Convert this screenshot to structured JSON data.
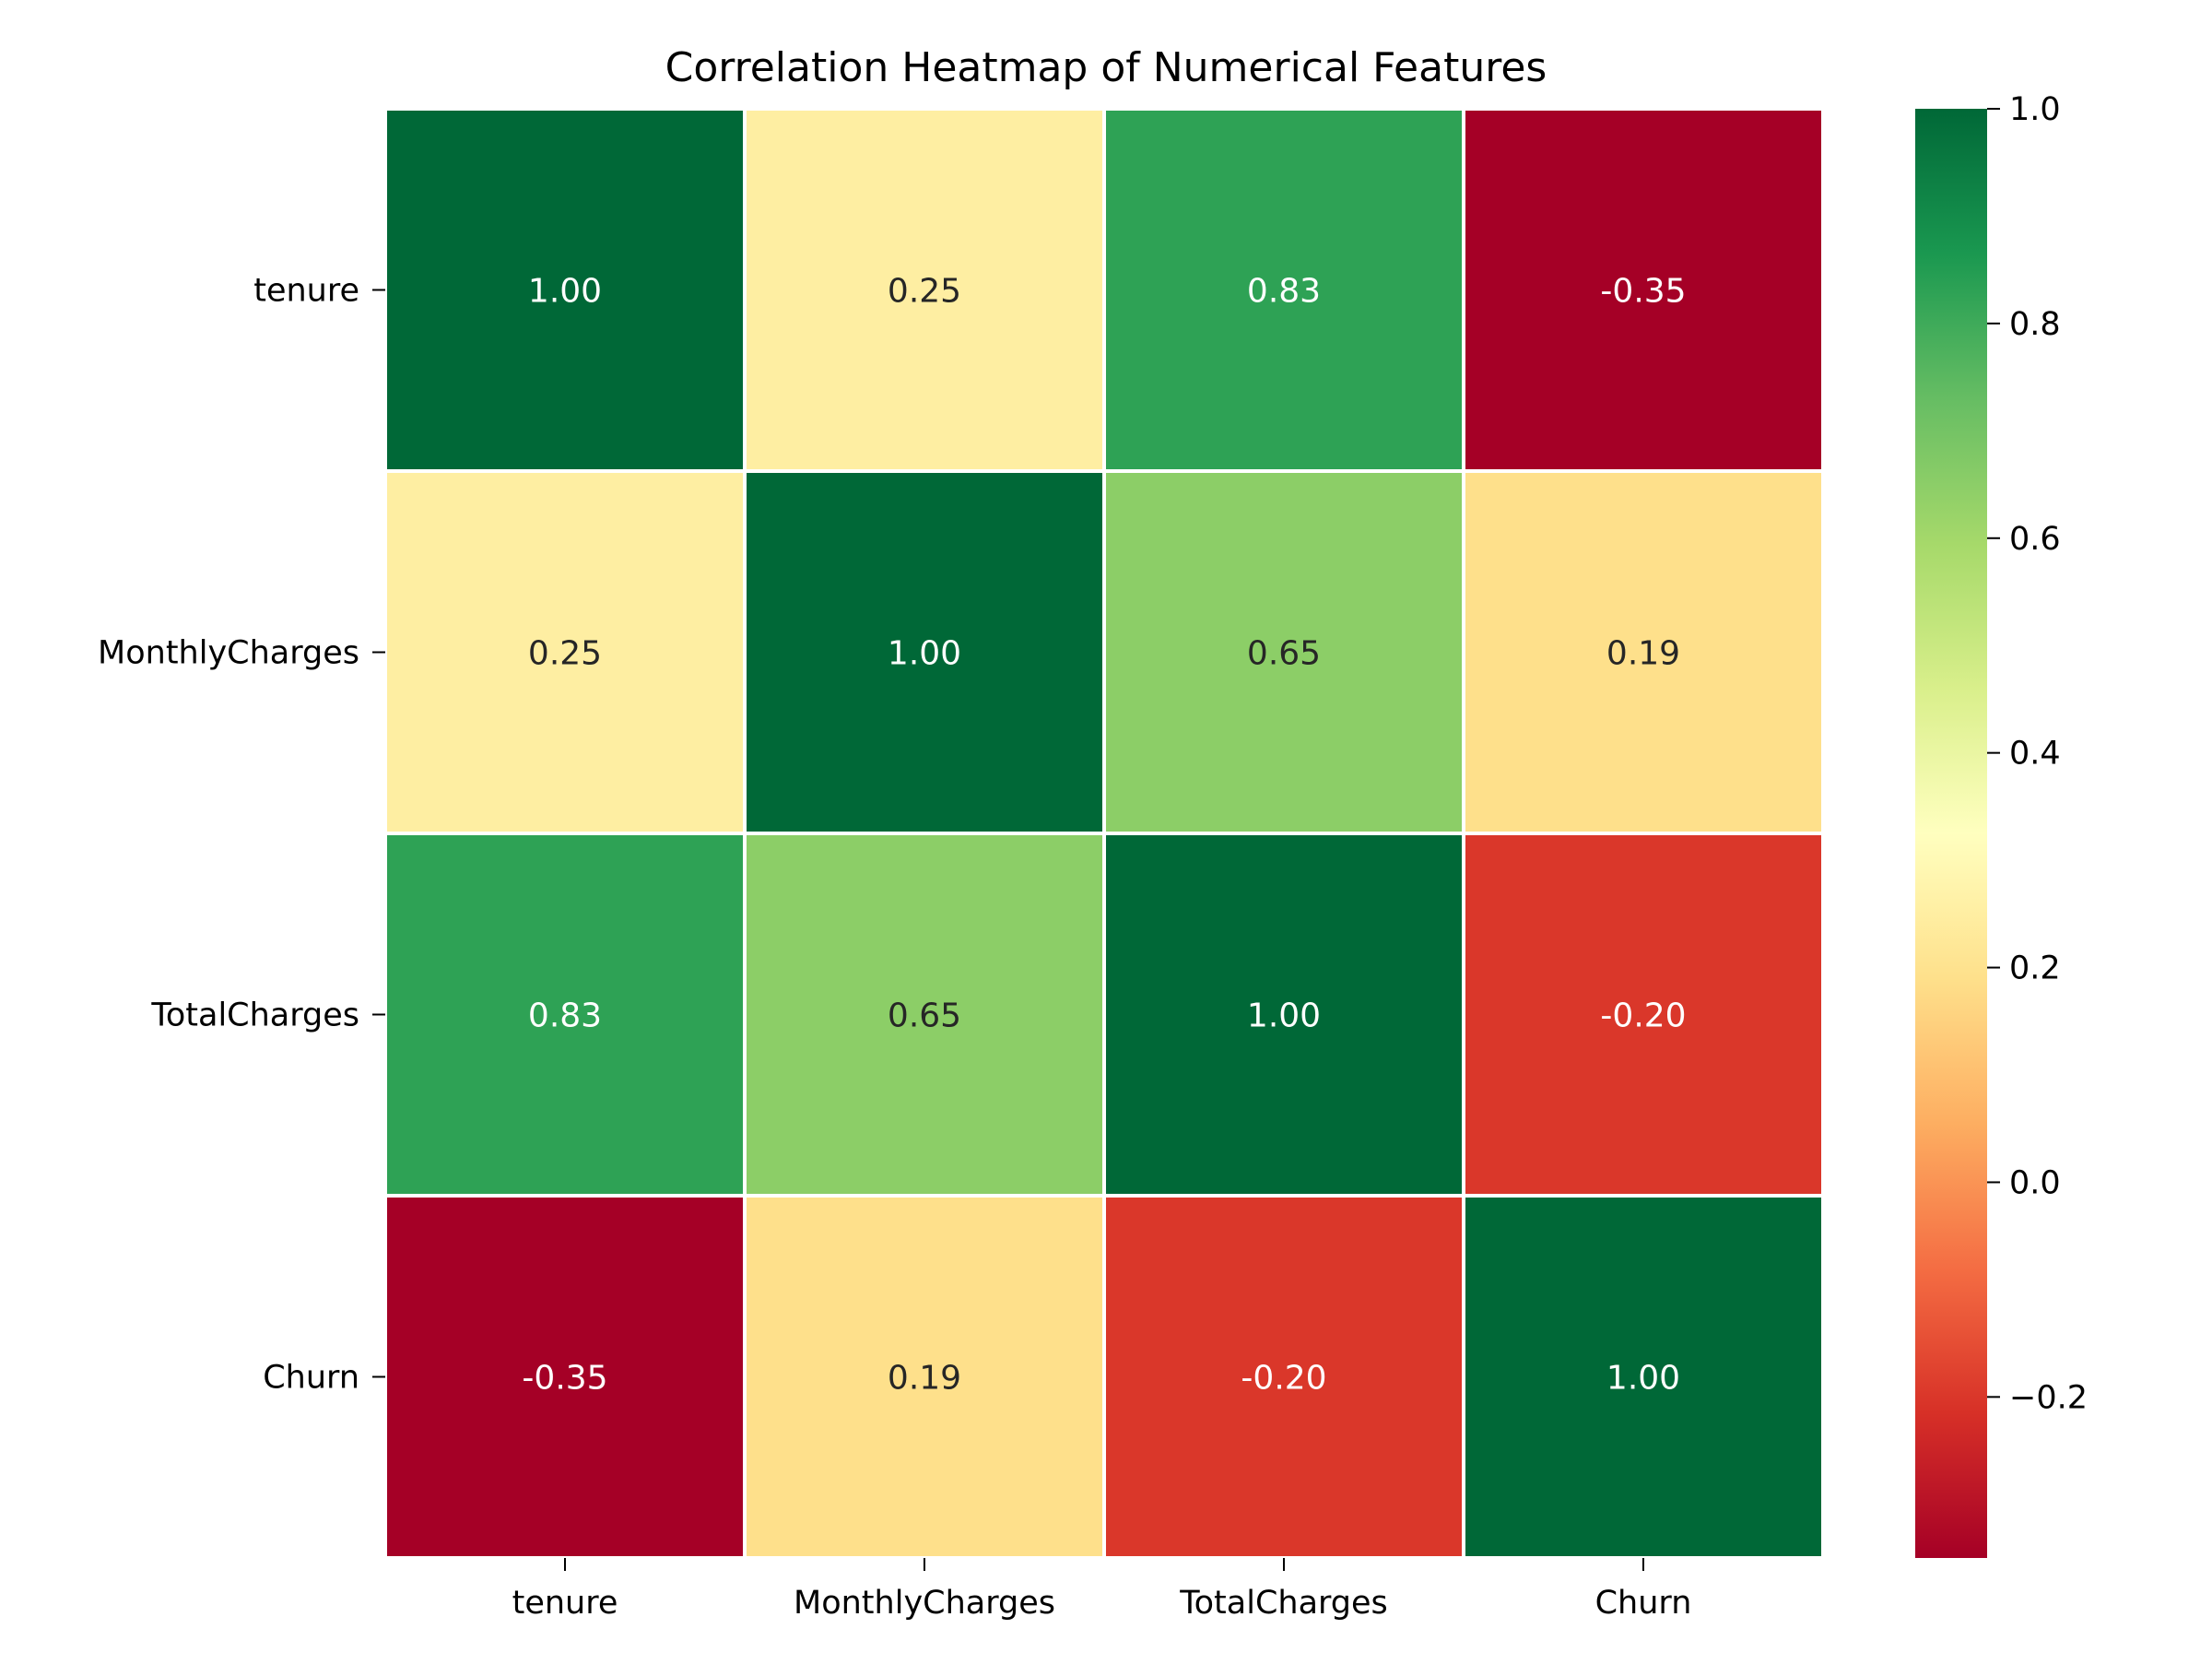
{
  "chart_data": {
    "type": "heatmap",
    "title": "Correlation Heatmap of Numerical Features",
    "xlabel": "",
    "ylabel": "",
    "x_categories": [
      "tenure",
      "MonthlyCharges",
      "TotalCharges",
      "Churn"
    ],
    "y_categories": [
      "tenure",
      "MonthlyCharges",
      "TotalCharges",
      "Churn"
    ],
    "values": [
      [
        1.0,
        0.25,
        0.83,
        -0.35
      ],
      [
        0.25,
        1.0,
        0.65,
        0.19
      ],
      [
        0.83,
        0.65,
        1.0,
        -0.2
      ],
      [
        -0.35,
        0.19,
        -0.2,
        1.0
      ]
    ],
    "value_format": "0.00",
    "colormap": "RdYlGn",
    "color_range": [
      -0.35,
      1.0
    ],
    "colorbar": {
      "ticks": [
        1.0,
        0.8,
        0.6,
        0.4,
        0.2,
        0.0,
        -0.2
      ],
      "tick_labels": [
        "1.0",
        "0.8",
        "0.6",
        "0.4",
        "0.2",
        "0.0",
        "−0.2"
      ],
      "placement": "right"
    },
    "grid": false,
    "cell_separator_color": "#ffffff"
  }
}
